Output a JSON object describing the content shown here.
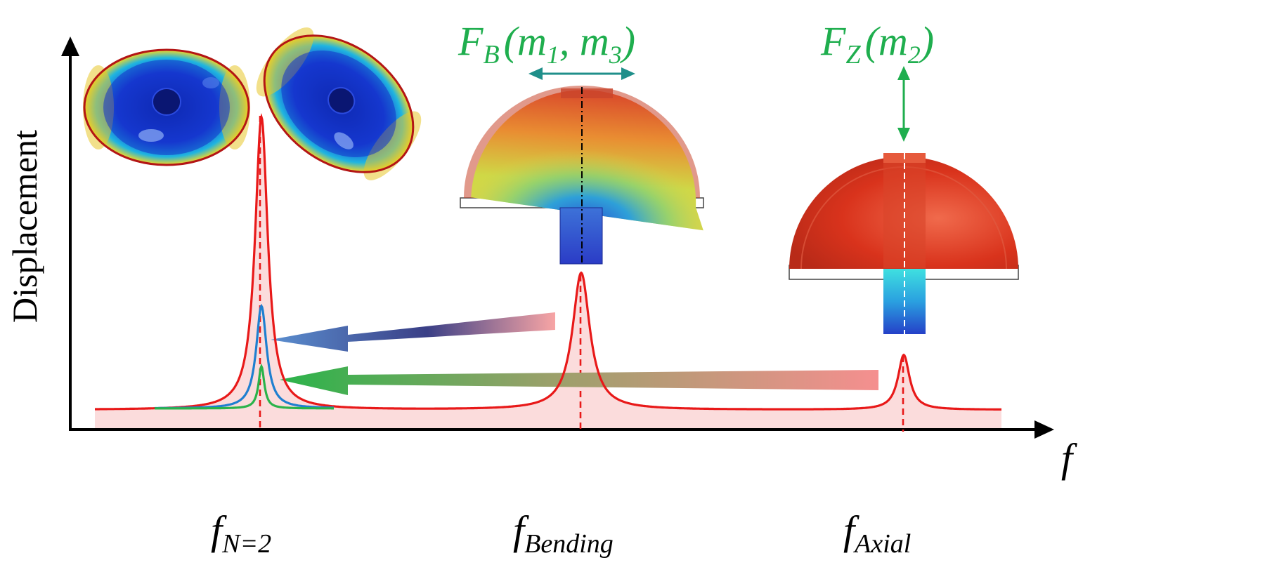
{
  "axes": {
    "y_label": "Displacement",
    "x_label": "f"
  },
  "peaks": [
    {
      "key": "n2",
      "label_main": "f",
      "label_sub": "N=2"
    },
    {
      "key": "bending",
      "label_main": "f",
      "label_sub": "Bending"
    },
    {
      "key": "axial",
      "label_main": "f",
      "label_sub": "Axial"
    }
  ],
  "forces": {
    "bending": {
      "main": "F",
      "sub": "B",
      "args_open": "(m",
      "arg1_sub": "1",
      "arg_sep": ", m",
      "arg2_sub": "3",
      "args_close": ")"
    },
    "axial": {
      "main": "F",
      "sub": "Z",
      "args_open": "(m",
      "arg1_sub": "2",
      "args_close": ")"
    }
  },
  "colors": {
    "main_curve": "#e81919",
    "fill": "#fbdcdc",
    "blue_curve": "#1f7fd0",
    "green_curve": "#2ab34a",
    "force_text": "#1fae4e",
    "arrow_teal": "#1f8f8a"
  }
}
